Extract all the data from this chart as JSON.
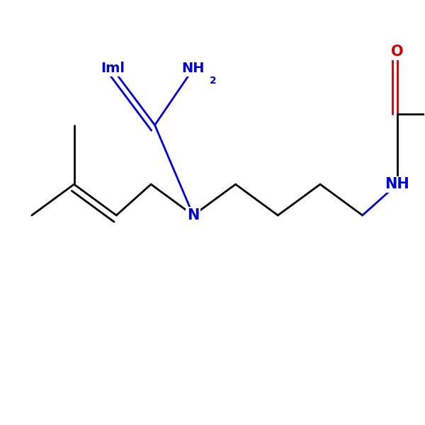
{
  "background_color": "#ffffff",
  "bond_color": "#000000",
  "nitrogen_color": "#0000cc",
  "oxygen_color": "#cc0000",
  "line_width": 2.0,
  "font_size": 14,
  "fig_size": [
    6.0,
    6.0
  ],
  "dpi": 100,
  "xlim": [
    -0.5,
    10.5
  ],
  "ylim": [
    -3.5,
    4.0
  ]
}
